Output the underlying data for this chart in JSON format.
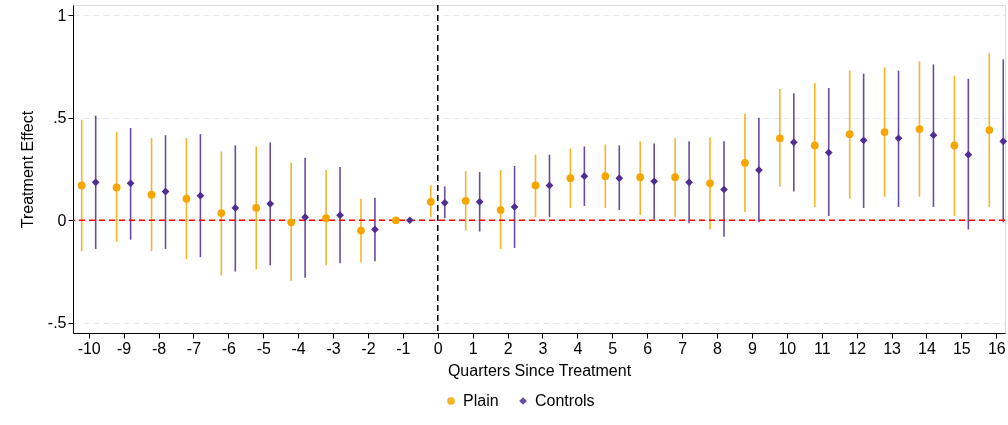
{
  "chart_data": {
    "type": "scatter",
    "xlabel": "Quarters Since Treatment",
    "ylabel": "Treatment Effect",
    "xlim": [
      -10.45,
      16.25
    ],
    "xticks": [
      -10,
      -9,
      -8,
      -7,
      -6,
      -5,
      -4,
      -3,
      -2,
      -1,
      0,
      1,
      2,
      3,
      4,
      5,
      6,
      7,
      8,
      9,
      10,
      11,
      12,
      13,
      14,
      15,
      16
    ],
    "ylim": [
      -0.55,
      1.05
    ],
    "yticks": [
      {
        "value": -0.5,
        "label": "-.5"
      },
      0,
      {
        "value": 0.5,
        "label": ".5"
      },
      1
    ],
    "grid": "y",
    "legend": "bottom",
    "ref_lines": [
      {
        "axis": "y",
        "value": 0,
        "color": "#ff0000",
        "line_style": "dashed"
      },
      {
        "axis": "x",
        "value": 0,
        "color": "#000000",
        "line_style": "dashed"
      }
    ],
    "series": [
      {
        "name": "Plain",
        "color": "#f7a600",
        "marker": "circle",
        "x": [
          -10.2,
          -9.2,
          -8.2,
          -7.2,
          -6.2,
          -5.2,
          -4.2,
          -3.2,
          -2.2,
          -1.2,
          -0.2,
          0.8,
          1.8,
          2.8,
          3.8,
          4.8,
          5.8,
          6.8,
          7.8,
          8.8,
          9.8,
          10.8,
          11.8,
          12.8,
          13.8,
          14.8,
          15.8
        ],
        "values": [
          0.17,
          0.16,
          0.125,
          0.105,
          0.035,
          0.06,
          -0.01,
          0.01,
          -0.05,
          0,
          0.09,
          0.095,
          0.05,
          0.17,
          0.205,
          0.215,
          0.21,
          0.21,
          0.18,
          0.28,
          0.4,
          0.365,
          0.42,
          0.43,
          0.445,
          0.365,
          0.44
        ],
        "errors": [
          [
            -0.15,
            0.49
          ],
          [
            -0.105,
            0.43
          ],
          [
            -0.15,
            0.4
          ],
          [
            -0.19,
            0.4
          ],
          [
            -0.27,
            0.335
          ],
          [
            -0.24,
            0.36
          ],
          [
            -0.295,
            0.28
          ],
          [
            -0.22,
            0.245
          ],
          [
            -0.205,
            0.105
          ],
          null,
          [
            0.015,
            0.17
          ],
          [
            -0.05,
            0.24
          ],
          [
            -0.14,
            0.245
          ],
          [
            0.015,
            0.32
          ],
          [
            0.06,
            0.35
          ],
          [
            0.06,
            0.37
          ],
          [
            0.025,
            0.385
          ],
          [
            0.015,
            0.4
          ],
          [
            -0.045,
            0.405
          ],
          [
            0.04,
            0.52
          ],
          [
            0.165,
            0.64
          ],
          [
            0.065,
            0.67
          ],
          [
            0.105,
            0.73
          ],
          [
            0.115,
            0.745
          ],
          [
            0.115,
            0.775
          ],
          [
            0.02,
            0.705
          ],
          [
            0.065,
            0.815
          ]
        ]
      },
      {
        "name": "Controls",
        "color": "#4f2d91",
        "marker": "diamond",
        "x": [
          -9.8,
          -8.8,
          -7.8,
          -6.8,
          -5.8,
          -4.8,
          -3.8,
          -2.8,
          -1.8,
          -0.8,
          0.2,
          1.2,
          2.2,
          3.2,
          4.2,
          5.2,
          6.2,
          7.2,
          8.2,
          9.2,
          10.2,
          11.2,
          12.2,
          13.2,
          14.2,
          15.2,
          16.2
        ],
        "values": [
          0.185,
          0.18,
          0.14,
          0.12,
          0.06,
          0.08,
          0.015,
          0.025,
          -0.045,
          0,
          0.085,
          0.09,
          0.065,
          0.17,
          0.215,
          0.205,
          0.19,
          0.185,
          0.15,
          0.245,
          0.38,
          0.33,
          0.39,
          0.4,
          0.415,
          0.32,
          0.385
        ],
        "errors": [
          [
            -0.14,
            0.51
          ],
          [
            -0.095,
            0.45
          ],
          [
            -0.14,
            0.415
          ],
          [
            -0.18,
            0.42
          ],
          [
            -0.25,
            0.365
          ],
          [
            -0.22,
            0.38
          ],
          [
            -0.28,
            0.305
          ],
          [
            -0.21,
            0.26
          ],
          [
            -0.2,
            0.11
          ],
          null,
          [
            0.01,
            0.165
          ],
          [
            -0.055,
            0.235
          ],
          [
            -0.135,
            0.265
          ],
          [
            0.015,
            0.32
          ],
          [
            0.07,
            0.36
          ],
          [
            0.05,
            0.365
          ],
          [
            0.005,
            0.375
          ],
          [
            -0.015,
            0.385
          ],
          [
            -0.08,
            0.385
          ],
          [
            -0.01,
            0.5
          ],
          [
            0.14,
            0.62
          ],
          [
            0.02,
            0.645
          ],
          [
            0.06,
            0.715
          ],
          [
            0.065,
            0.73
          ],
          [
            0.065,
            0.76
          ],
          [
            -0.045,
            0.69
          ],
          [
            -0.01,
            0.785
          ]
        ]
      }
    ]
  }
}
